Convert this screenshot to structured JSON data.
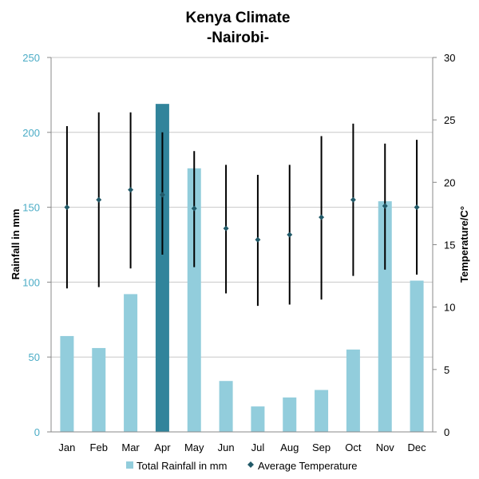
{
  "chart_data": {
    "type": "bar",
    "title": "Kenya Climate",
    "subtitle": "-Nairobi-",
    "categories": [
      "Jan",
      "Feb",
      "Mar",
      "Apr",
      "May",
      "Jun",
      "Jul",
      "Aug",
      "Sep",
      "Oct",
      "Nov",
      "Dec"
    ],
    "ylabel": "Rainfall in mm",
    "y2label": "Temperature/C°",
    "ylim": [
      0,
      250
    ],
    "y2lim": [
      0,
      30
    ],
    "yticks": [
      "0",
      "50",
      "100",
      "150",
      "200",
      "250"
    ],
    "y2ticks": [
      "0",
      "5",
      "10",
      "15",
      "20",
      "25",
      "30"
    ],
    "grid": true,
    "legend_position": "bottom",
    "highlight_category": "Apr",
    "series": [
      {
        "name": "Total Rainfall in mm",
        "kind": "bar",
        "axis": "left",
        "values": [
          64,
          56,
          92,
          219,
          176,
          34,
          17,
          23,
          28,
          55,
          154,
          101
        ]
      },
      {
        "name": "Average Temperature",
        "kind": "point_range",
        "axis": "right",
        "values": [
          18.0,
          18.6,
          19.4,
          19.0,
          17.9,
          16.3,
          15.4,
          15.8,
          17.2,
          18.6,
          18.1,
          18.0
        ],
        "high": [
          24.5,
          25.6,
          25.6,
          24.0,
          22.5,
          21.4,
          20.6,
          21.4,
          23.7,
          24.7,
          23.1,
          23.4
        ],
        "low": [
          11.5,
          11.6,
          13.1,
          14.2,
          13.2,
          11.1,
          10.1,
          10.2,
          10.6,
          12.5,
          13.0,
          12.6
        ]
      }
    ],
    "colors": {
      "bar": "#92cddc",
      "bar_highlight": "#31849b",
      "marker": "#215968",
      "range_line": "#000000",
      "left_axis_text": "#4bacc6",
      "right_axis_text": "#000000",
      "grid": "#c8c8c8"
    }
  }
}
